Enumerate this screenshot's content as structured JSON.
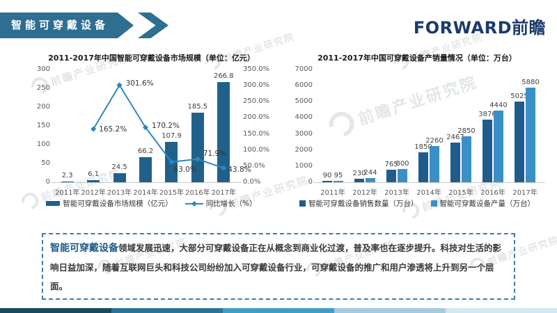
{
  "header": {
    "title": "智能可穿戴设备",
    "logo_en": "FORWARD",
    "logo_cn": "前瞻"
  },
  "watermark": {
    "text": "前瞻产业研究院"
  },
  "chart_data": [
    {
      "type": "bar",
      "subtype": "bar+line combo",
      "title": "2011-2017年中国智能可穿戴设备市场规模（单位：亿元）",
      "categories": [
        "2011年",
        "2012年",
        "2013年",
        "2014年",
        "2015年",
        "2016年",
        "2017年"
      ],
      "series": [
        {
          "name": "智能可穿戴设备市场规模（亿元）",
          "kind": "bar",
          "color": "#20618b",
          "values": [
            2.3,
            6.1,
            24.5,
            66.2,
            107.9,
            185.5,
            266.8
          ],
          "value_labels": [
            "2.3",
            "6.1",
            "24.5",
            "66.2",
            "107.9",
            "185.5",
            "266.8"
          ]
        },
        {
          "name": "同比增长（%）",
          "kind": "line",
          "color": "#2e86c1",
          "values": [
            null,
            165.2,
            301.6,
            170.2,
            63.0,
            71.9,
            43.8
          ],
          "value_labels": [
            "",
            "165.2%",
            "301.6%",
            "170.2%",
            "63.0%",
            "71.9%",
            "43.8%"
          ]
        }
      ],
      "y_axis_left": {
        "min": 0,
        "max": 300,
        "ticks": [
          "0",
          "50",
          "100",
          "150",
          "200",
          "250",
          "300"
        ]
      },
      "y_axis_right": {
        "min": 0,
        "max": 350,
        "ticks": [
          "0.0%",
          "50.0%",
          "100.0%",
          "150.0%",
          "200.0%",
          "250.0%",
          "300.0%",
          "350.0%"
        ]
      },
      "legend_position": "bottom",
      "grid": false
    },
    {
      "type": "bar",
      "subtype": "grouped bars",
      "title": "2011-2017年中国可穿戴设备产销量情况（单位：万台）",
      "categories": [
        "2011年",
        "2012年",
        "2013年",
        "2014年",
        "2015年",
        "2016年",
        "2017年"
      ],
      "series": [
        {
          "name": "智能可穿戴设备销售数量（万台）",
          "kind": "bar",
          "color": "#1f5c8b",
          "values": [
            90,
            230,
            765,
            1850,
            2467,
            3876,
            5025
          ],
          "value_labels": [
            "90",
            "230",
            "765",
            "1850",
            "2467",
            "3876",
            "5025"
          ]
        },
        {
          "name": "智能可穿戴设备产量（万台）",
          "kind": "bar",
          "color": "#3a8fc7",
          "values": [
            95,
            244,
            800,
            2260,
            2850,
            4440,
            5880
          ],
          "value_labels": [
            "95",
            "244",
            "800",
            "2260",
            "2850",
            "4440",
            "5880"
          ]
        }
      ],
      "y_axis_left": {
        "min": 0,
        "max": 7000,
        "ticks": [
          "0",
          "1000",
          "2000",
          "3000",
          "4000",
          "5000",
          "6000",
          "7000"
        ]
      },
      "legend_position": "bottom",
      "grid": false
    }
  ],
  "note": {
    "lead": "智能可穿戴设备",
    "body": "领域发展迅速，大部分可穿戴设备正在从概念到商业化过渡，普及率也在逐步提升。科技对生活的影响日益加深，随着互联网巨头和科技公司纷纷加入可穿戴设备行业，可穿戴设备的推广和用户渗透将上升到另一个层面。"
  },
  "footer": {
    "colors": [
      "#1a4a60",
      "#2c7396",
      "#3f9dc6",
      "#a3cade",
      "#d3e7f1"
    ]
  }
}
